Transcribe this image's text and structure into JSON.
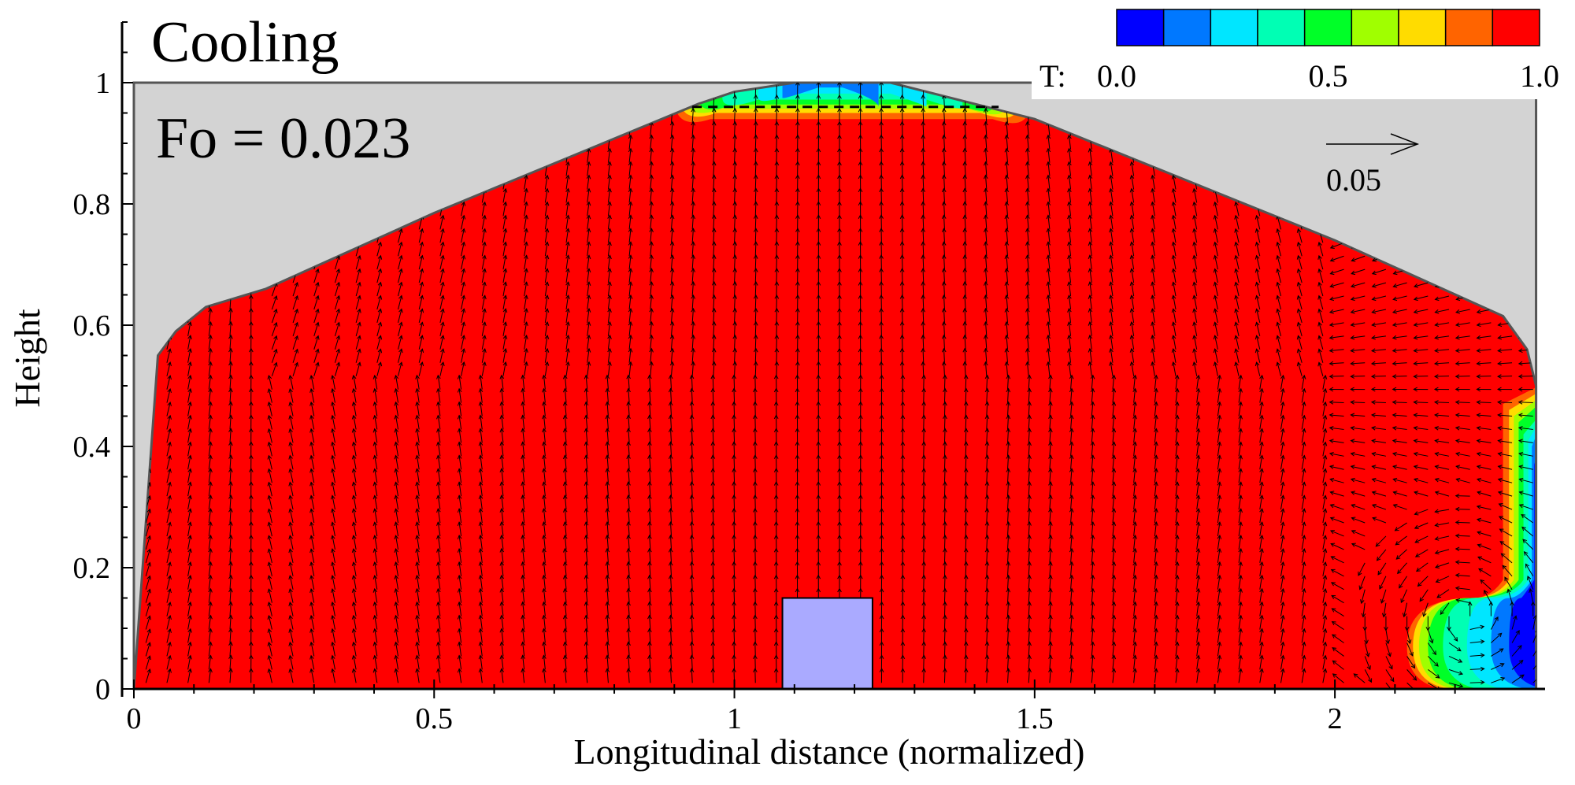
{
  "chart_data": {
    "type": "contour",
    "title": "Cooling",
    "annotation": "Fo = 0.023",
    "xlabel": "Longitudinal distance (normalized)",
    "ylabel": "Height",
    "xlim": [
      0,
      2.35
    ],
    "ylim": [
      0,
      1.1
    ],
    "x_ticks": [
      0,
      0.5,
      1,
      1.5,
      2
    ],
    "x_tick_labels": [
      "0",
      "0.5",
      "1",
      "1.5",
      "2"
    ],
    "y_ticks": [
      0,
      0.2,
      0.4,
      0.6,
      0.8,
      1
    ],
    "y_tick_labels": [
      "0",
      "0.2",
      "0.4",
      "0.6",
      "0.8",
      "1"
    ],
    "grid": false,
    "field": "T",
    "legend": {
      "placement": "top-right",
      "prefix": "T:",
      "labels": [
        "0.0",
        "0.5",
        "1.0"
      ],
      "label_values": [
        0.0,
        0.5,
        1.0
      ],
      "levels": [
        0.0,
        0.111,
        0.222,
        0.333,
        0.444,
        0.556,
        0.667,
        0.778,
        0.889,
        1.0
      ],
      "colors": [
        "#0000ff",
        "#0078ff",
        "#00e6ff",
        "#00ffb4",
        "#00ff28",
        "#a0ff00",
        "#ffdc00",
        "#ff6400",
        "#ff0000"
      ]
    },
    "reference_vector": {
      "label": "0.05",
      "magnitude": 0.05
    },
    "domain_outline": [
      [
        0,
        0
      ],
      [
        0.04,
        0.55
      ],
      [
        0.07,
        0.59
      ],
      [
        0.12,
        0.63
      ],
      [
        0.22,
        0.66
      ],
      [
        0.5,
        0.785
      ],
      [
        0.94,
        0.965
      ],
      [
        1.0,
        0.985
      ],
      [
        1.1,
        1.0
      ],
      [
        1.26,
        1.0
      ],
      [
        1.5,
        0.94
      ],
      [
        2.0,
        0.74
      ],
      [
        2.28,
        0.615
      ],
      [
        2.32,
        0.56
      ],
      [
        2.335,
        0.5
      ],
      [
        2.335,
        0
      ]
    ],
    "obstacle": {
      "x": [
        1.08,
        1.23
      ],
      "y": [
        0,
        0.15
      ]
    },
    "dashed_line": {
      "x": [
        0.93,
        1.44
      ],
      "y": 0.96
    },
    "colors": {
      "background_region": "#d3d3d3",
      "obstacle": "#aaaaff",
      "hot": "#ff0000",
      "arrows": "#000000",
      "outline": "#555555"
    }
  }
}
